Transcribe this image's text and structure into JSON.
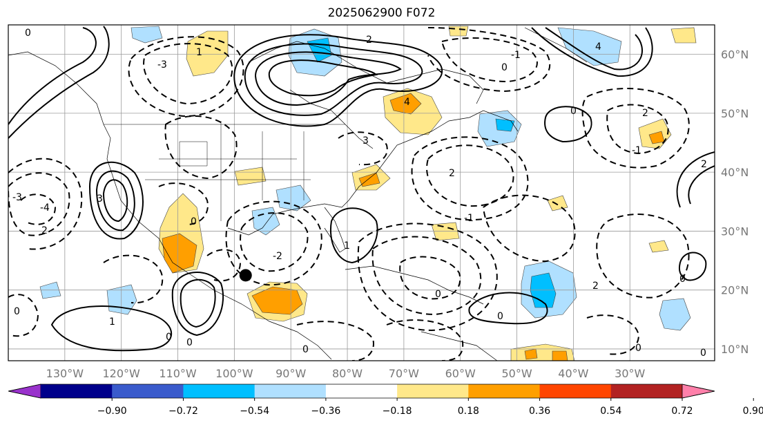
{
  "title": "2025062900 F072",
  "map": {
    "projection": "PlateCarree",
    "lon_range": [
      -140,
      -15
    ],
    "lat_range": [
      8,
      65
    ],
    "lon_ticks": [
      "130°W",
      "120°W",
      "110°W",
      "100°W",
      "90°W",
      "80°W",
      "70°W",
      "60°W",
      "50°W",
      "40°W",
      "30°W"
    ],
    "lat_ticks": [
      "60°N",
      "50°N",
      "40°N",
      "30°N",
      "20°N",
      "10°N"
    ],
    "gridlines": true,
    "contour_labels": [
      "0",
      "1",
      "2",
      "3",
      "4",
      "-1",
      "-2",
      "-3",
      "-4",
      "-2",
      "2",
      "0",
      "1",
      "0",
      "2",
      "-1",
      "0",
      "-1",
      "2",
      "2",
      "0",
      "-1",
      "4",
      "-4"
    ],
    "marker": {
      "name": "center-dot",
      "lon": -98,
      "lat": 22.5
    }
  },
  "colorbar": {
    "ticks": [
      "−0.90",
      "−0.72",
      "−0.54",
      "−0.36",
      "−0.18",
      "0.18",
      "0.36",
      "0.54",
      "0.72",
      "0.90"
    ],
    "colors": [
      "#9932cc",
      "#00008b",
      "#3a5bcc",
      "#00bfff",
      "#b0e0ff",
      "#ffffff",
      "#ffe88a",
      "#ff9f00",
      "#ff4500",
      "#b22222",
      "#ff80aa"
    ],
    "extend": "both"
  }
}
